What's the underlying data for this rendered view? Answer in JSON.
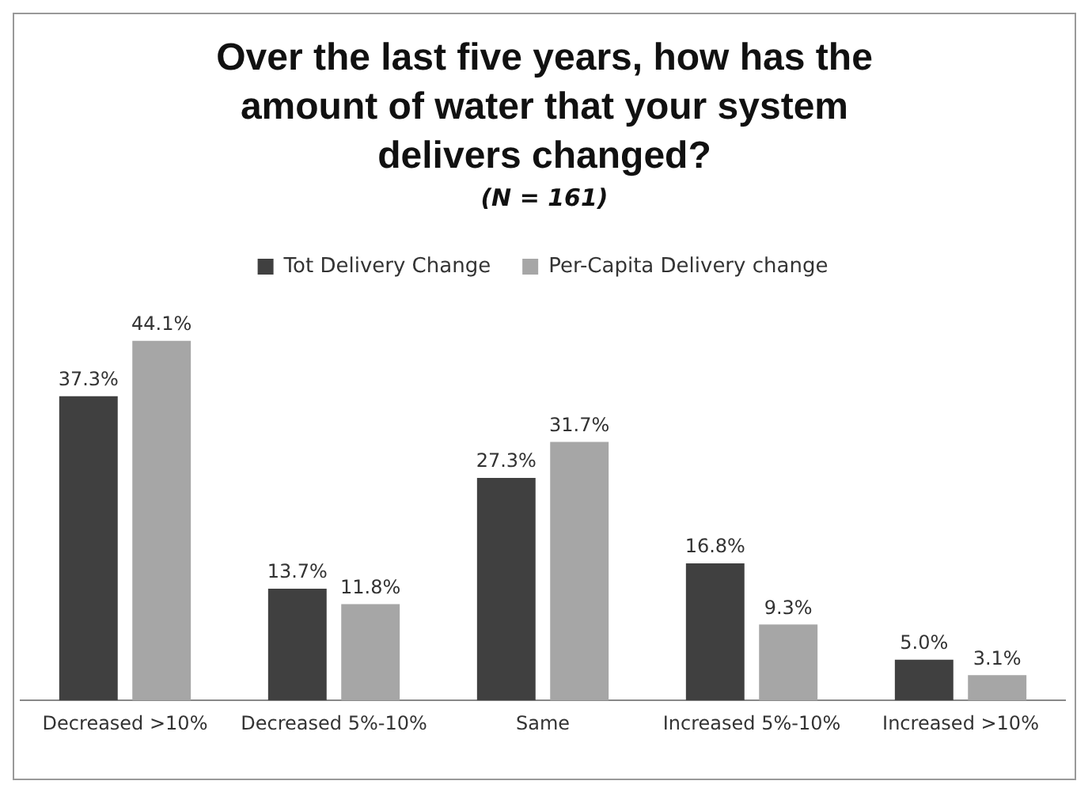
{
  "chart_data": {
    "type": "bar",
    "title": "Over the last five years, how has the amount of water that your system delivers changed?",
    "subtitle": "(N = 161)",
    "categories": [
      "Decreased >10%",
      "Decreased 5%-10%",
      "Same",
      "Increased 5%-10%",
      "Increased >10%"
    ],
    "series": [
      {
        "name": "Tot Delivery Change",
        "color": "#404040",
        "values": [
          37.3,
          13.7,
          27.3,
          16.8,
          5.0
        ],
        "value_labels": [
          "37.3%",
          "13.7%",
          "27.3%",
          "16.8%",
          "5.0%"
        ]
      },
      {
        "name": "Per-Capita Delivery change",
        "color": "#a6a6a6",
        "values": [
          44.1,
          11.8,
          31.7,
          9.3,
          3.1
        ],
        "value_labels": [
          "44.1%",
          "11.8%",
          "31.7%",
          "9.3%",
          "3.1%"
        ]
      }
    ],
    "legend": "top",
    "grid": false
  }
}
